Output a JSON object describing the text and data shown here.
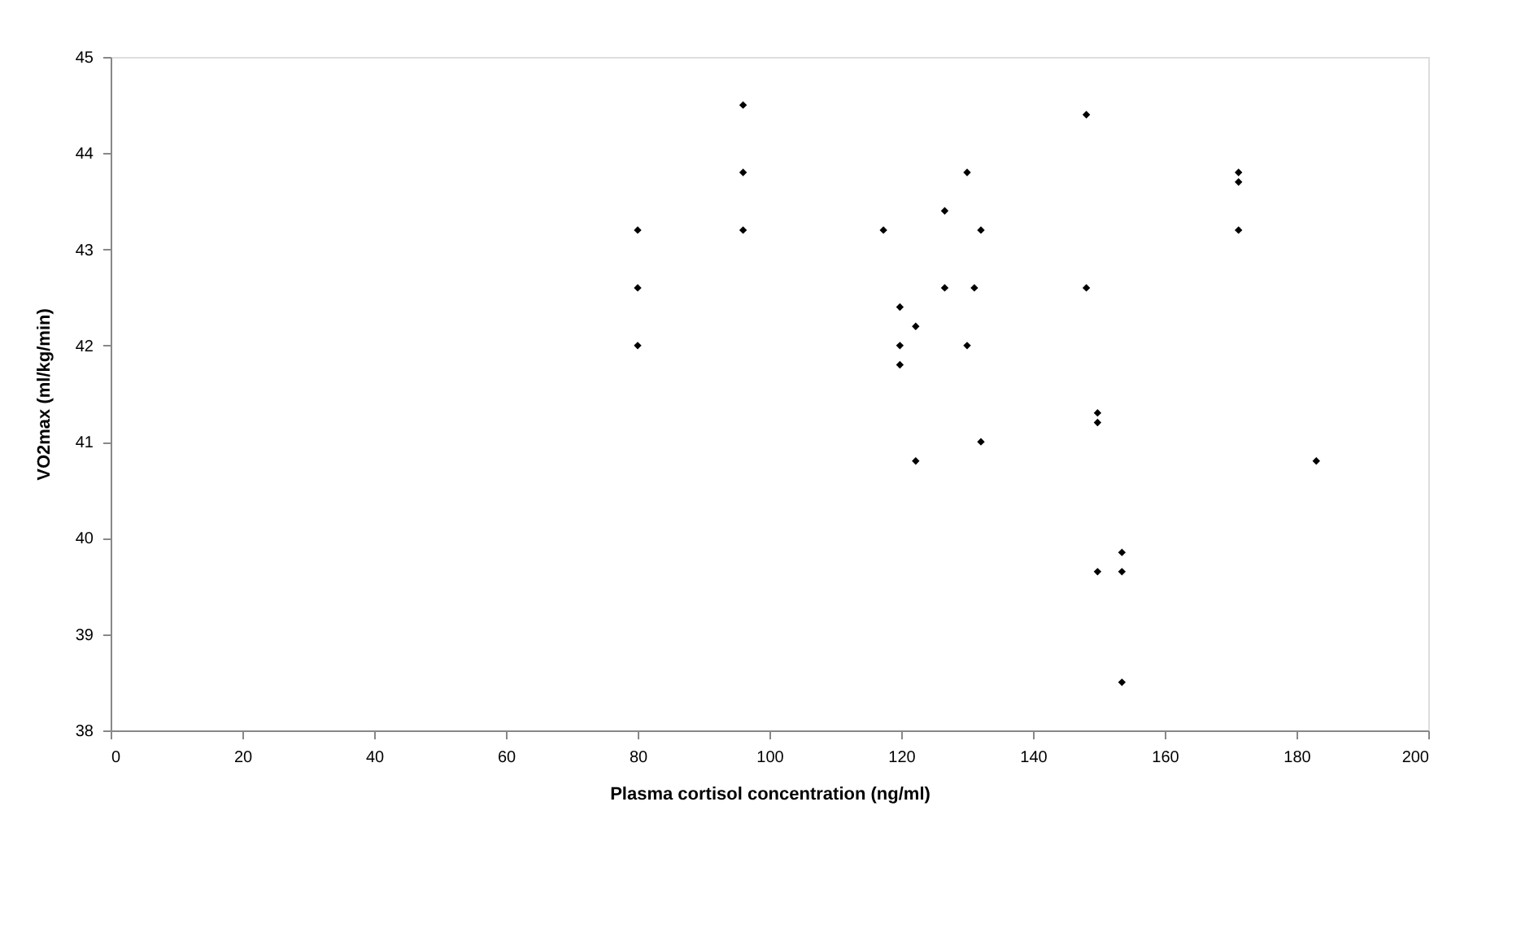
{
  "chart_data": {
    "type": "scatter",
    "xlabel": "Plasma cortisol concentration (ng/ml)",
    "ylabel": "VO2max (ml/kg/min)",
    "x": [
      80,
      80,
      80,
      96,
      96,
      96,
      117.3,
      119.8,
      119.8,
      119.8,
      122.2,
      122.2,
      126.6,
      126.6,
      130,
      130,
      131.1,
      132.1,
      132.1,
      148.1,
      148.1,
      149.8,
      149.8,
      149.8,
      153.5,
      153.5,
      153.5,
      171.2,
      171.2,
      171.2,
      183
    ],
    "values": [
      43.2,
      42.6,
      42.0,
      44.5,
      43.8,
      43.2,
      43.2,
      42.4,
      42.0,
      41.8,
      42.2,
      40.8,
      43.4,
      42.6,
      43.8,
      42.0,
      42.6,
      43.2,
      41.0,
      44.4,
      42.6,
      41.3,
      41.2,
      39.65,
      39.85,
      39.65,
      38.5,
      43.8,
      43.7,
      43.2,
      40.8
    ],
    "color": "#000000",
    "marker": "diamond",
    "grid": false,
    "xlim": [
      0,
      200
    ],
    "xticks": [
      0,
      20,
      40,
      60,
      80,
      100,
      120,
      140,
      160,
      180,
      200
    ],
    "ylim": [
      38,
      45
    ],
    "yticks": [
      38,
      39,
      40,
      41,
      42,
      43,
      44,
      45
    ]
  }
}
